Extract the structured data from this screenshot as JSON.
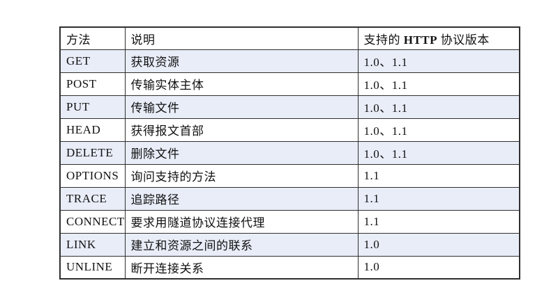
{
  "table": {
    "columns": [
      {
        "label": "方法"
      },
      {
        "label": "说明"
      },
      {
        "prefix": "支持的 ",
        "bold": "HTTP",
        "suffix": " 协议版本"
      }
    ],
    "rows": [
      {
        "method": "GET",
        "description": "获取资源",
        "versions": "1.0、1.1",
        "shaded": true
      },
      {
        "method": "POST",
        "description": "传输实体主体",
        "versions": "1.0、1.1",
        "shaded": false
      },
      {
        "method": "PUT",
        "description": "传输文件",
        "versions": "1.0、1.1",
        "shaded": true
      },
      {
        "method": "HEAD",
        "description": "获得报文首部",
        "versions": "1.0、1.1",
        "shaded": false
      },
      {
        "method": "DELETE",
        "description": "删除文件",
        "versions": "1.0、1.1",
        "shaded": true
      },
      {
        "method": "OPTIONS",
        "description": "询问支持的方法",
        "versions": "1.1",
        "shaded": false
      },
      {
        "method": "TRACE",
        "description": "追踪路径",
        "versions": "1.1",
        "shaded": true
      },
      {
        "method": "CONNECT",
        "description": "要求用隧道协议连接代理",
        "versions": "1.1",
        "shaded": false
      },
      {
        "method": "LINK",
        "description": "建立和资源之间的联系",
        "versions": "1.0",
        "shaded": true
      },
      {
        "method": "UNLINE",
        "description": "断开连接关系",
        "versions": "1.0",
        "shaded": false
      }
    ],
    "colors": {
      "row_shade": "#e8edf8",
      "border": "#2e2e2e",
      "text": "#111111",
      "background": "#ffffff"
    }
  }
}
